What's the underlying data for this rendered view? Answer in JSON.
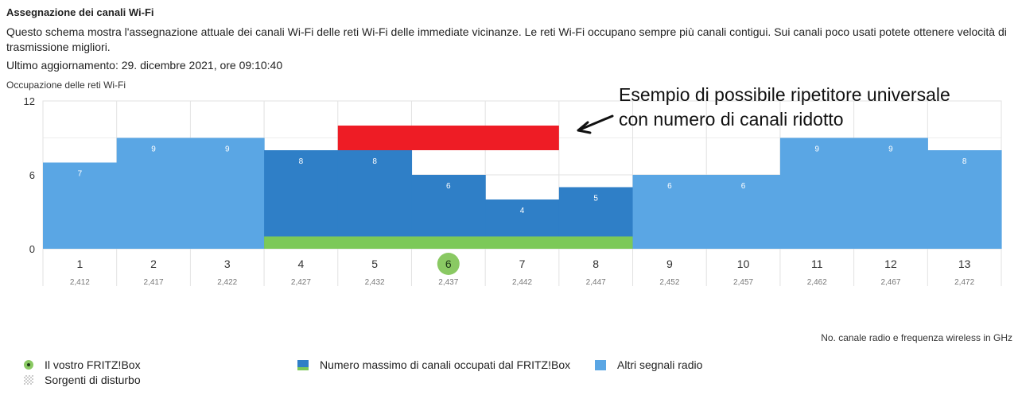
{
  "header": {
    "title": "Assegnazione dei canali Wi-Fi",
    "description": "Questo schema mostra l'assegnazione attuale dei canali Wi-Fi delle reti Wi-Fi delle immediate vicinanze. Le reti Wi-Fi occupano sempre più canali contigui. Sui canali poco usati potete ottenere velocità di trasmissione migliori.",
    "updated": "Ultimo aggiornamento: 29. dicembre 2021, ore 09:10:40"
  },
  "chart_title": "Occupazione delle reti Wi-Fi",
  "annotation": {
    "line1": "Esempio di possibile ripetitore universale",
    "line2": "con numero di canali ridotto"
  },
  "axis_caption": "No. canale radio e frequenza wireless in GHz",
  "legend": {
    "fritzbox": "Il vostro FRITZ!Box",
    "noise": "Sorgenti di disturbo",
    "max_channels": "Numero massimo di canali occupati dal FRITZ!Box",
    "other": "Altri segnali radio"
  },
  "colors": {
    "other_signals": "#5aa6e4",
    "fritzbox_range": "#2f7fc7",
    "green": "#7cc958",
    "repeater": "#ee1c25",
    "current_channel": "#8ac963",
    "grid": "#e2e2e2"
  },
  "chart_data": {
    "type": "bar",
    "title": "Occupazione delle reti Wi-Fi",
    "xlabel": "No. canale radio e frequenza wireless in GHz",
    "ylabel": "",
    "ylim": [
      0,
      12
    ],
    "yticks": [
      0,
      6,
      12
    ],
    "categories": [
      "1",
      "2",
      "3",
      "4",
      "5",
      "6",
      "7",
      "8",
      "9",
      "10",
      "11",
      "12",
      "13"
    ],
    "frequencies": [
      "2,412",
      "2,417",
      "2,422",
      "2,427",
      "2,432",
      "2,437",
      "2,442",
      "2,447",
      "2,452",
      "2,457",
      "2,462",
      "2,467",
      "2,472"
    ],
    "values": [
      7,
      9,
      9,
      8,
      8,
      6,
      4,
      5,
      6,
      6,
      9,
      9,
      8
    ],
    "fritzbox_channel": "6",
    "fritzbox_channels_range": [
      "4",
      "8"
    ],
    "repeater_highlight": {
      "channels": [
        "5",
        "7"
      ],
      "ylim": [
        8,
        10
      ]
    },
    "grid": true
  }
}
